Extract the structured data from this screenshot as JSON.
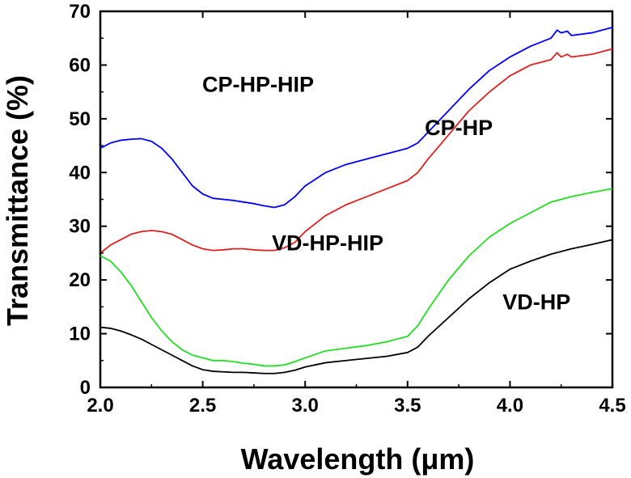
{
  "chart_data": {
    "type": "line",
    "title": "",
    "xlabel": "Wavelength (μm)",
    "ylabel": "Transmittance (%)",
    "xlim": [
      2.0,
      4.5
    ],
    "ylim": [
      0,
      70
    ],
    "xticks": [
      "2.0",
      "2.5",
      "3.0",
      "3.5",
      "4.0",
      "4.5"
    ],
    "yticks": [
      "0",
      "10",
      "20",
      "30",
      "40",
      "50",
      "60",
      "70"
    ],
    "grid": false,
    "legend": "none",
    "series": [
      {
        "name": "CP-HP-HIP",
        "color": "#0000ff",
        "x": [
          2.0,
          2.05,
          2.1,
          2.15,
          2.2,
          2.25,
          2.3,
          2.35,
          2.4,
          2.45,
          2.5,
          2.55,
          2.6,
          2.65,
          2.7,
          2.75,
          2.8,
          2.85,
          2.9,
          2.95,
          3.0,
          3.1,
          3.2,
          3.3,
          3.4,
          3.5,
          3.55,
          3.6,
          3.7,
          3.8,
          3.9,
          4.0,
          4.1,
          4.2,
          4.23,
          4.25,
          4.28,
          4.3,
          4.4,
          4.5
        ],
        "y": [
          44.5,
          45.5,
          46.0,
          46.2,
          46.3,
          45.8,
          44.5,
          42.5,
          40.0,
          37.5,
          36.0,
          35.2,
          35.0,
          34.8,
          34.5,
          34.2,
          33.8,
          33.5,
          34.0,
          35.5,
          37.5,
          40.0,
          41.5,
          42.5,
          43.5,
          44.5,
          45.5,
          47.5,
          51.5,
          55.5,
          59.0,
          61.5,
          63.5,
          65.0,
          66.5,
          66.0,
          66.3,
          65.5,
          66.0,
          67.0
        ]
      },
      {
        "name": "CP-HP",
        "color": "#e02020",
        "x": [
          2.0,
          2.05,
          2.1,
          2.15,
          2.2,
          2.25,
          2.3,
          2.35,
          2.4,
          2.45,
          2.5,
          2.55,
          2.6,
          2.65,
          2.7,
          2.75,
          2.8,
          2.85,
          2.9,
          2.95,
          3.0,
          3.1,
          3.2,
          3.3,
          3.4,
          3.5,
          3.55,
          3.6,
          3.7,
          3.8,
          3.9,
          4.0,
          4.1,
          4.2,
          4.23,
          4.25,
          4.28,
          4.3,
          4.4,
          4.5
        ],
        "y": [
          25.0,
          26.5,
          27.5,
          28.5,
          29.0,
          29.2,
          29.0,
          28.5,
          27.5,
          26.5,
          25.8,
          25.5,
          25.6,
          25.8,
          25.8,
          25.6,
          25.5,
          25.5,
          26.0,
          27.0,
          29.0,
          32.0,
          34.0,
          35.5,
          37.0,
          38.5,
          40.0,
          42.5,
          47.0,
          51.5,
          55.0,
          58.0,
          60.0,
          61.0,
          62.3,
          61.5,
          62.0,
          61.5,
          62.0,
          63.0
        ]
      },
      {
        "name": "VD-HP-HIP",
        "color": "#22dd22",
        "x": [
          2.0,
          2.05,
          2.1,
          2.15,
          2.2,
          2.25,
          2.3,
          2.35,
          2.4,
          2.45,
          2.5,
          2.55,
          2.6,
          2.65,
          2.7,
          2.75,
          2.8,
          2.85,
          2.9,
          2.95,
          3.0,
          3.1,
          3.2,
          3.3,
          3.4,
          3.5,
          3.55,
          3.6,
          3.7,
          3.8,
          3.9,
          4.0,
          4.1,
          4.2,
          4.3,
          4.4,
          4.5
        ],
        "y": [
          24.5,
          23.5,
          21.5,
          19.0,
          16.0,
          13.0,
          10.5,
          8.5,
          7.0,
          6.0,
          5.5,
          5.0,
          5.0,
          4.8,
          4.5,
          4.3,
          4.0,
          4.0,
          4.2,
          4.8,
          5.5,
          6.8,
          7.3,
          7.8,
          8.5,
          9.5,
          11.5,
          14.5,
          20.0,
          24.5,
          28.0,
          30.5,
          32.5,
          34.5,
          35.5,
          36.3,
          37.0
        ]
      },
      {
        "name": "VD-HP",
        "color": "#000000",
        "x": [
          2.0,
          2.05,
          2.1,
          2.15,
          2.2,
          2.25,
          2.3,
          2.35,
          2.4,
          2.45,
          2.5,
          2.55,
          2.6,
          2.65,
          2.7,
          2.75,
          2.8,
          2.85,
          2.9,
          2.95,
          3.0,
          3.1,
          3.2,
          3.3,
          3.4,
          3.5,
          3.55,
          3.6,
          3.7,
          3.8,
          3.9,
          4.0,
          4.1,
          4.2,
          4.3,
          4.4,
          4.5
        ],
        "y": [
          11.2,
          11.0,
          10.5,
          9.8,
          9.0,
          8.0,
          7.0,
          6.0,
          5.0,
          4.0,
          3.3,
          3.0,
          2.9,
          2.8,
          2.8,
          2.7,
          2.6,
          2.6,
          2.8,
          3.2,
          3.8,
          4.6,
          5.0,
          5.4,
          5.8,
          6.5,
          7.5,
          9.5,
          13.0,
          16.5,
          19.5,
          22.0,
          23.5,
          24.8,
          25.8,
          26.6,
          27.5
        ]
      }
    ],
    "annotations": [
      {
        "text": "CP-HP-HIP",
        "series": "CP-HP-HIP",
        "x": 2.77,
        "y": 55.0
      },
      {
        "text": "CP-HP",
        "series": "CP-HP",
        "x": 3.75,
        "y": 47.0
      },
      {
        "text": "VD-HP-HIP",
        "series": "VD-HP-HIP",
        "x": 3.11,
        "y": 25.5
      },
      {
        "text": "VD-HP",
        "series": "VD-HP",
        "x": 4.13,
        "y": 14.5
      }
    ]
  }
}
